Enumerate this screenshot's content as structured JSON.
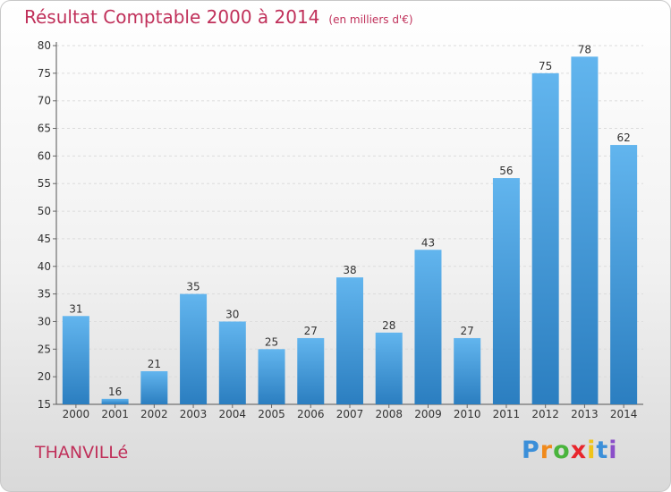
{
  "title": "Résultat Comptable 2000 à 2014",
  "subtitle": "(en milliers d'€)",
  "place_name": "THANVILLé",
  "logo": {
    "letters": [
      "P",
      "r",
      "o",
      "x",
      "i",
      "t",
      "i"
    ],
    "colors": [
      "#3b8fd9",
      "#f08a1c",
      "#49b43c",
      "#e8252c",
      "#f0c419",
      "#3b8fd9",
      "#8b4fc9"
    ]
  },
  "colors": {
    "bar": "#4aa3e2",
    "bar_top": "#62b5ee",
    "bar_bottom": "#2b7ec0",
    "title": "#c0305a"
  },
  "chart_data": {
    "type": "bar",
    "title": "Résultat Comptable 2000 à 2014",
    "subtitle": "(en milliers d'€)",
    "categories": [
      "2000",
      "2001",
      "2002",
      "2003",
      "2004",
      "2005",
      "2006",
      "2007",
      "2008",
      "2009",
      "2010",
      "2011",
      "2012",
      "2013",
      "2014"
    ],
    "values": [
      31,
      16,
      21,
      35,
      30,
      25,
      27,
      38,
      28,
      43,
      27,
      56,
      75,
      78,
      62
    ],
    "ylim": [
      15,
      80
    ],
    "yticks": [
      15,
      20,
      25,
      30,
      35,
      40,
      45,
      50,
      55,
      60,
      65,
      70,
      75,
      80
    ],
    "xlabel": "",
    "ylabel": "",
    "grid": true,
    "legend": "none"
  }
}
